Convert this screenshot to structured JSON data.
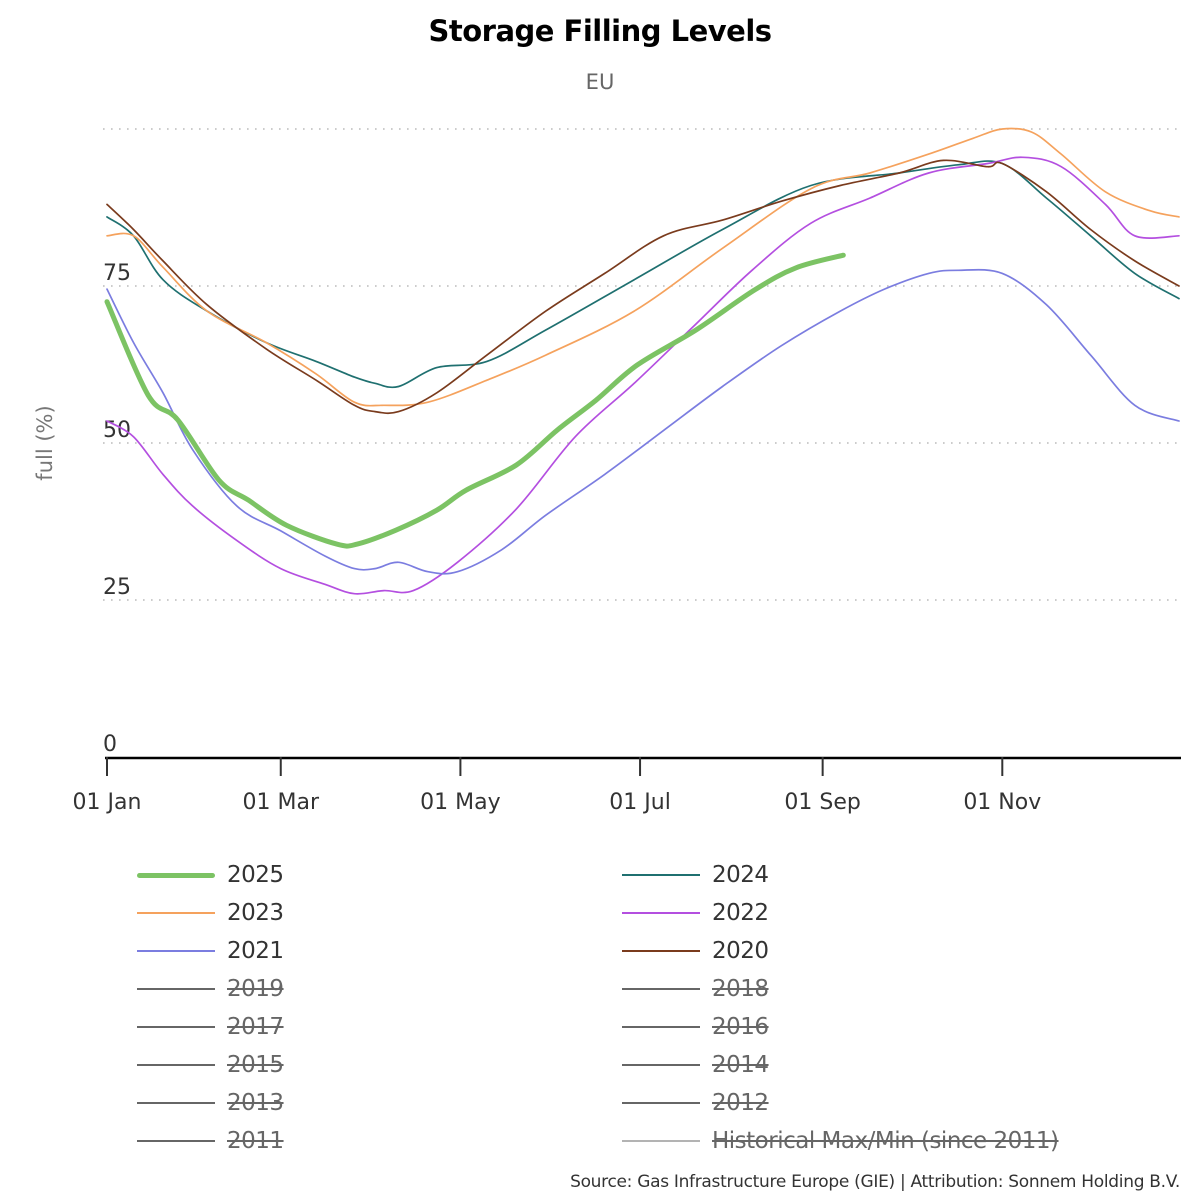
{
  "chart_data": {
    "type": "line",
    "title": "Storage Filling Levels",
    "subtitle": "EU",
    "xlabel": "",
    "ylabel": "full (%)",
    "ylim": [
      0,
      100
    ],
    "xlim_day_of_year": [
      1,
      365
    ],
    "y_ticks": [
      0,
      25,
      50,
      75
    ],
    "grid": "horizontal dotted",
    "x_ticks": [
      {
        "label": "01 Jan",
        "day": 1
      },
      {
        "label": "01 Mar",
        "day": 60
      },
      {
        "label": "01 May",
        "day": 121
      },
      {
        "label": "01 Jul",
        "day": 182
      },
      {
        "label": "01 Sep",
        "day": 244
      },
      {
        "label": "01 Nov",
        "day": 305
      }
    ],
    "legend_position": "bottom",
    "series": [
      {
        "name": "2025",
        "color": "#7cc364",
        "visible": true,
        "emphasis": true,
        "x": [
          1,
          15,
          25,
          39,
          49,
          62,
          79,
          86,
          99,
          113,
          123,
          140,
          154,
          167,
          181,
          201,
          221,
          235,
          251
        ],
        "y": [
          72.5,
          57.6,
          53.7,
          44.1,
          40.9,
          36.9,
          33.9,
          33.9,
          36.1,
          39.3,
          42.5,
          46.5,
          52.1,
          56.8,
          62.4,
          68.0,
          74.4,
          77.9,
          79.9
        ]
      },
      {
        "name": "2024",
        "color": "#1f7070",
        "visible": true,
        "x": [
          1,
          10,
          20,
          35,
          55,
          72,
          85,
          92,
          100,
          113,
          130,
          150,
          180,
          210,
          240,
          270,
          290,
          305,
          320,
          335,
          350,
          365
        ],
        "y": [
          86,
          83,
          76,
          71,
          66,
          63,
          60.5,
          59.5,
          59,
          62,
          63,
          68,
          76,
          84,
          91,
          93,
          94.3,
          94.5,
          89,
          83,
          77,
          73
        ]
      },
      {
        "name": "2023",
        "color": "#f5a25d",
        "visible": true,
        "x": [
          1,
          10,
          20,
          35,
          55,
          72,
          85,
          95,
          110,
          130,
          150,
          180,
          210,
          240,
          260,
          280,
          295,
          305,
          315,
          325,
          340,
          355,
          365
        ],
        "y": [
          83,
          83,
          78,
          71,
          66,
          61,
          56.5,
          56,
          56.5,
          60,
          64,
          71,
          81,
          90.5,
          93,
          96,
          98.5,
          100,
          99.5,
          96,
          90,
          87,
          86
        ]
      },
      {
        "name": "2022",
        "color": "#b44fe0",
        "visible": true,
        "x": [
          1,
          10,
          20,
          30,
          45,
          60,
          75,
          85,
          95,
          105,
          120,
          140,
          160,
          180,
          200,
          220,
          240,
          260,
          280,
          300,
          312,
          325,
          340,
          350,
          365
        ],
        "y": [
          53.5,
          51,
          45,
          40,
          34.5,
          30,
          27.5,
          26,
          26.5,
          26.5,
          31,
          39.5,
          51,
          59.5,
          68.5,
          77.5,
          85,
          89,
          93,
          94.5,
          95.5,
          94,
          88,
          83,
          83
        ]
      },
      {
        "name": "2021",
        "color": "#7b7de0",
        "visible": true,
        "x": [
          1,
          10,
          20,
          30,
          45,
          60,
          75,
          85,
          92,
          100,
          110,
          120,
          135,
          150,
          170,
          190,
          210,
          230,
          250,
          265,
          280,
          290,
          305,
          320,
          335,
          350,
          365
        ],
        "y": [
          74.5,
          66,
          58,
          49,
          40,
          36,
          32,
          30,
          30,
          31,
          29.5,
          29.5,
          33,
          38.5,
          45,
          52,
          59,
          65.5,
          71,
          74.5,
          77,
          77.5,
          77,
          72,
          64,
          56,
          53.5
        ]
      },
      {
        "name": "2020",
        "color": "#7a3b1d",
        "visible": true,
        "x": [
          1,
          10,
          20,
          35,
          55,
          72,
          85,
          92,
          100,
          113,
          130,
          150,
          170,
          190,
          210,
          230,
          250,
          270,
          285,
          300,
          305,
          320,
          335,
          350,
          365
        ],
        "y": [
          88,
          84,
          79,
          72,
          65,
          60,
          56,
          55,
          55,
          58,
          64,
          71,
          77,
          83,
          85.5,
          88.5,
          91,
          93,
          95,
          94,
          94.5,
          90,
          84,
          79,
          75
        ]
      },
      {
        "name": "2019",
        "color": "#666666",
        "visible": false
      },
      {
        "name": "2018",
        "color": "#666666",
        "visible": false
      },
      {
        "name": "2017",
        "color": "#666666",
        "visible": false
      },
      {
        "name": "2016",
        "color": "#666666",
        "visible": false
      },
      {
        "name": "2015",
        "color": "#666666",
        "visible": false
      },
      {
        "name": "2014",
        "color": "#666666",
        "visible": false
      },
      {
        "name": "2013",
        "color": "#666666",
        "visible": false
      },
      {
        "name": "2012",
        "color": "#666666",
        "visible": false
      },
      {
        "name": "2011",
        "color": "#666666",
        "visible": false
      },
      {
        "name": "Historical Max/Min (since 2011)",
        "color": "#b3b3b3",
        "visible": false
      }
    ]
  },
  "legend": {
    "order": [
      "2025",
      "2024",
      "2023",
      "2022",
      "2021",
      "2020",
      "2019",
      "2018",
      "2017",
      "2016",
      "2015",
      "2014",
      "2013",
      "2012",
      "2011",
      "Historical Max/Min (since 2011)"
    ]
  },
  "footer": {
    "source": "Source: Gas Infrastructure Europe (GIE) | Attribution: Sonnem Holding B.V."
  }
}
